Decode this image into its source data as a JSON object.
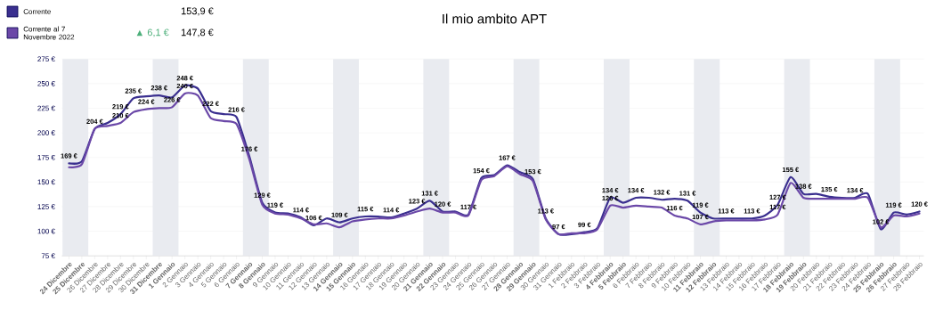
{
  "chart_data": {
    "type": "line",
    "title": "Il mio ambito APT",
    "categories": [
      "**24 Dicembre**",
      "**25 Dicembre**",
      "26 Dicembre",
      "27 Dicembre",
      "28 Dicembre",
      "29 Dicembre",
      "30 Dicembre",
      "**31 Dicembre**",
      "**1 Gennaio**",
      "2 Gennaio",
      "3 Gennaio",
      "4 Gennaio",
      "5 Gennaio",
      "6 Gennaio",
      "**7 Gennaio**",
      "**8 Gennaio**",
      "9 Gennaio",
      "10 Gennaio",
      "11 Gennaio",
      "12 Gennaio",
      "13 Gennaio",
      "**14 Gennaio**",
      "**15 Gennaio**",
      "16 Gennaio",
      "17 Gennaio",
      "18 Gennaio",
      "19 Gennaio",
      "20 Gennaio",
      "**21 Gennaio**",
      "**22 Gennaio**",
      "23 Gennaio",
      "24 Gennaio",
      "25 Gennaio",
      "26 Gennaio",
      "27 Gennaio",
      "**28 Gennaio**",
      "**29 Gennaio**",
      "30 Gennaio",
      "31 Gennaio",
      "1 Febbraio",
      "2 Febbraio",
      "3 Febbraio",
      "**4 Febbraio**",
      "**5 Febbraio**",
      "6 Febbraio",
      "7 Febbraio",
      "8 Febbraio",
      "9 Febbraio",
      "10 Febbraio",
      "**11 Febbraio**",
      "**12 Febbraio**",
      "13 Febbraio",
      "14 Febbraio",
      "15 Febbraio",
      "16 Febbraio",
      "17 Febbraio",
      "**18 Febbraio**",
      "**19 Febbraio**",
      "20 Febbraio",
      "21 Febbraio",
      "22 Febbraio",
      "23 Febbraio",
      "24 Febbraio",
      "**25 Febbraio**",
      "**26 Febbraio**",
      "27 Febbraio",
      "28 Febbraio"
    ],
    "series": [
      {
        "name": "Corrente",
        "color": "#3a2f8f",
        "values": [
          169,
          171,
          204,
          210,
          219,
          235,
          237,
          238,
          236,
          248,
          245,
          222,
          219,
          216,
          176,
          129,
          119,
          118,
          114,
          106,
          113,
          109,
          113,
          115,
          115,
          114,
          118,
          123,
          131,
          120,
          120,
          117,
          154,
          157,
          167,
          160,
          153,
          113,
          97,
          97,
          99,
          103,
          134,
          129,
          134,
          134,
          132,
          133,
          131,
          119,
          113,
          113,
          113,
          113,
          116,
          127,
          155,
          138,
          138,
          135,
          134,
          134,
          138,
          102,
          119,
          117,
          120
        ],
        "value_labels": [
          "169 €",
          null,
          "204 €",
          null,
          "219 €",
          "235 €",
          null,
          "238 €",
          null,
          "248 €",
          null,
          "222 €",
          null,
          "216 €",
          "176 €",
          "129 €",
          "119 €",
          null,
          "114 €",
          "106 €",
          null,
          "109 €",
          null,
          "115 €",
          null,
          "114 €",
          null,
          "123 €",
          "131 €",
          "120 €",
          null,
          "117 €",
          "154 €",
          null,
          "167 €",
          null,
          "153 €",
          "113 €",
          "97 €",
          null,
          "99 €",
          null,
          "134 €",
          null,
          "134 €",
          null,
          "132 €",
          null,
          "131 €",
          "119 €",
          null,
          "113 €",
          null,
          "113 €",
          null,
          "127 €",
          "155 €",
          "138 €",
          null,
          "135 €",
          null,
          "134 €",
          null,
          "102 €",
          "119 €",
          null,
          "120 €"
        ]
      },
      {
        "name": "Corrente al 7 Novembre 2022",
        "color": "#6b48a8",
        "values": [
          165,
          168,
          204,
          207,
          210,
          221,
          224,
          225,
          226,
          240,
          238,
          215,
          212,
          209,
          173,
          127,
          118,
          117,
          113,
          107,
          108,
          104,
          110,
          112,
          113,
          113,
          116,
          120,
          123,
          119,
          119,
          116,
          152,
          156,
          166,
          158,
          151,
          112,
          97,
          98,
          98,
          102,
          126,
          124,
          126,
          125,
          124,
          116,
          113,
          107,
          110,
          111,
          111,
          111,
          112,
          117,
          149,
          134,
          133,
          133,
          133,
          133,
          134,
          104,
          116,
          115,
          118
        ],
        "value_labels": [
          null,
          null,
          null,
          null,
          "210 €",
          null,
          "224 €",
          null,
          "226 €",
          "240 €",
          null,
          null,
          null,
          null,
          null,
          null,
          null,
          null,
          null,
          null,
          null,
          null,
          null,
          null,
          null,
          null,
          null,
          null,
          null,
          null,
          null,
          null,
          null,
          null,
          null,
          null,
          null,
          null,
          null,
          null,
          null,
          null,
          "126 €",
          null,
          null,
          null,
          null,
          "116 €",
          null,
          "107 €",
          null,
          null,
          null,
          null,
          null,
          "117 €",
          null,
          null,
          null,
          null,
          null,
          null,
          null,
          null,
          null,
          null,
          null
        ]
      }
    ],
    "ylim": [
      75,
      275
    ],
    "yticks": [
      {
        "value": 75,
        "label": "75 €"
      },
      {
        "value": 100,
        "label": "100 €"
      },
      {
        "value": 125,
        "label": "125 €"
      },
      {
        "value": 150,
        "label": "150 €"
      },
      {
        "value": 175,
        "label": "175 €"
      },
      {
        "value": 200,
        "label": "200 €"
      },
      {
        "value": 225,
        "label": "225 €"
      },
      {
        "value": 250,
        "label": "250 €"
      },
      {
        "value": 275,
        "label": "275 €"
      }
    ],
    "grid": "y",
    "legend": "top left",
    "bands": [
      {
        "axis": "x",
        "from": "**24 Dicembre**",
        "to": "**25 Dicembre**",
        "color": "#e9ebf0"
      },
      {
        "axis": "x",
        "from": "**31 Dicembre**",
        "to": "**1 Gennaio**",
        "color": "#e9ebf0"
      },
      {
        "axis": "x",
        "from": "**7 Gennaio**",
        "to": "**8 Gennaio**",
        "color": "#e9ebf0"
      },
      {
        "axis": "x",
        "from": "**14 Gennaio**",
        "to": "**15 Gennaio**",
        "color": "#e9ebf0"
      },
      {
        "axis": "x",
        "from": "**21 Gennaio**",
        "to": "**22 Gennaio**",
        "color": "#e9ebf0"
      },
      {
        "axis": "x",
        "from": "**28 Gennaio**",
        "to": "**29 Gennaio**",
        "color": "#e9ebf0"
      },
      {
        "axis": "x",
        "from": "**4 Febbraio**",
        "to": "**5 Febbraio**",
        "color": "#e9ebf0"
      },
      {
        "axis": "x",
        "from": "**11 Febbraio**",
        "to": "**12 Febbraio**",
        "color": "#e9ebf0"
      },
      {
        "axis": "x",
        "from": "**18 Febbraio**",
        "to": "**19 Febbraio**",
        "color": "#e9ebf0"
      },
      {
        "axis": "x",
        "from": "**25 Febbraio**",
        "to": "**26 Febbraio**",
        "color": "#e9ebf0"
      }
    ],
    "annotations": [
      "153,9 €",
      "▲ 6,1 €",
      "147,8 €"
    ]
  }
}
